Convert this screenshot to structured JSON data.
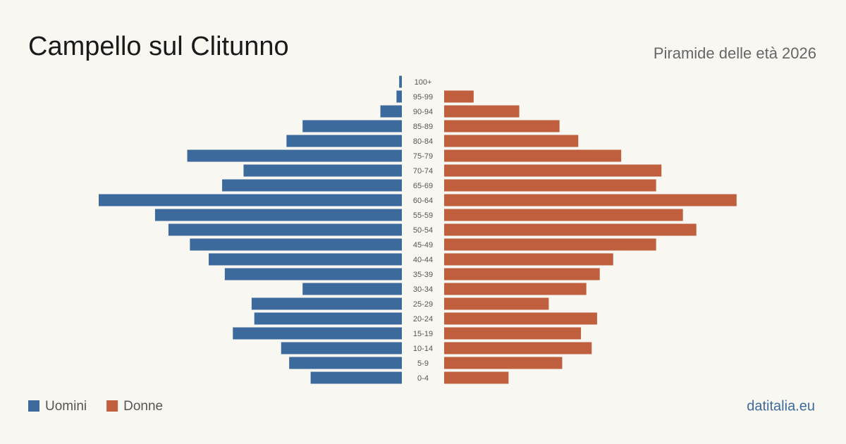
{
  "chart_data": {
    "type": "pyramid",
    "title": "Campello sul Clitunno",
    "subtitle": "Piramide delle età 2026",
    "source": "datitalia.eu",
    "categories": [
      "100+",
      "95-99",
      "90-94",
      "85-89",
      "80-84",
      "75-79",
      "70-74",
      "65-69",
      "60-64",
      "55-59",
      "50-54",
      "45-49",
      "40-44",
      "35-39",
      "30-34",
      "25-29",
      "20-24",
      "15-19",
      "10-14",
      "5-9",
      "0-4"
    ],
    "series": [
      {
        "name": "Uomini",
        "color": "#3d6a9c",
        "values": [
          1,
          2,
          8,
          37,
          43,
          80,
          59,
          67,
          113,
          92,
          87,
          79,
          72,
          66,
          37,
          56,
          55,
          63,
          45,
          42,
          34
        ]
      },
      {
        "name": "Donne",
        "color": "#bf5f3d",
        "values": [
          0,
          11,
          28,
          43,
          50,
          66,
          81,
          79,
          109,
          89,
          94,
          79,
          63,
          58,
          53,
          39,
          57,
          51,
          55,
          44,
          24
        ]
      }
    ]
  }
}
